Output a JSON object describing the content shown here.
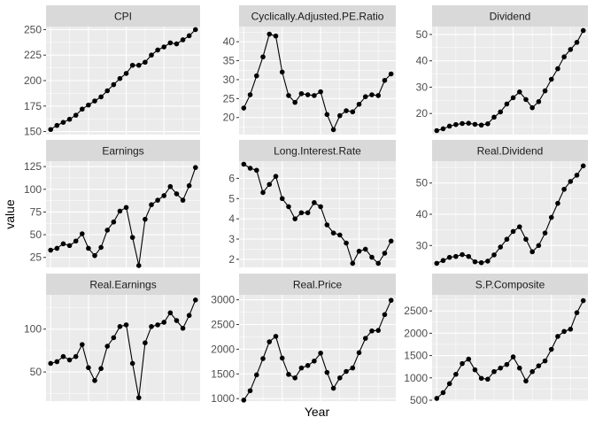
{
  "chart_data": {
    "type": "line",
    "facet_layout": "3x3 grid, free y scales",
    "xlabel": "Year",
    "ylabel": "value",
    "x_tick_labels": "none",
    "grid": true,
    "panels": [
      {
        "title": "CPI",
        "ylim": [
          147,
          253
        ],
        "ticks": [
          150,
          175,
          200,
          225,
          250
        ],
        "values": [
          152,
          156,
          159,
          162,
          166,
          172,
          176,
          180,
          184,
          190,
          196,
          202,
          207,
          215,
          215,
          218,
          225,
          230,
          233,
          237,
          236,
          240,
          244,
          250
        ]
      },
      {
        "title": "Cyclically.Adjusted.PE.Ratio",
        "ylim": [
          15.5,
          44
        ],
        "ticks": [
          20,
          25,
          30,
          35,
          40
        ],
        "values": [
          22.5,
          26,
          31,
          36,
          42,
          41.5,
          32,
          25.8,
          24,
          26.3,
          26,
          25.8,
          26.8,
          20.8,
          16.8,
          20.5,
          21.8,
          21.5,
          23.5,
          25.5,
          26,
          25.8,
          29.8,
          31.5
        ]
      },
      {
        "title": "Dividend",
        "ylim": [
          12,
          53
        ],
        "ticks": [
          20,
          30,
          40,
          50
        ],
        "values": [
          13.5,
          14.2,
          15.2,
          15.8,
          16.2,
          16.3,
          15.9,
          15.6,
          16.1,
          18.6,
          20.6,
          23.6,
          26,
          28.2,
          25.3,
          22.2,
          24.5,
          28.6,
          33,
          37,
          41.5,
          44.3,
          47,
          51.5
        ]
      },
      {
        "title": "Earnings",
        "ylim": [
          14,
          131
        ],
        "ticks": [
          25,
          50,
          75,
          100,
          125
        ],
        "values": [
          33,
          35,
          40,
          38,
          43,
          51,
          35,
          27,
          36,
          55,
          64,
          76,
          80,
          47,
          16,
          67,
          83,
          88,
          93,
          103,
          95,
          88,
          104,
          124
        ]
      },
      {
        "title": "Long.Interest.Rate",
        "ylim": [
          1.6,
          6.85
        ],
        "ticks": [
          2,
          3,
          4,
          5,
          6
        ],
        "values": [
          6.7,
          6.5,
          6.4,
          5.3,
          5.7,
          6.1,
          5,
          4.6,
          4,
          4.3,
          4.3,
          4.8,
          4.6,
          3.7,
          3.3,
          3.2,
          2.8,
          1.8,
          2.4,
          2.5,
          2.1,
          1.8,
          2.3,
          2.9
        ]
      },
      {
        "title": "Real.Dividend",
        "ylim": [
          23,
          57
        ],
        "ticks": [
          30,
          40,
          50
        ],
        "values": [
          24.3,
          25.2,
          26.2,
          26.5,
          27.1,
          26.5,
          24.8,
          24.5,
          25,
          27,
          29.5,
          32,
          34.5,
          36,
          32,
          28,
          30,
          34,
          39,
          43.5,
          48,
          50.5,
          52.5,
          55.5
        ]
      },
      {
        "title": "Real.Earnings",
        "ylim": [
          16,
          140
        ],
        "ticks": [
          50,
          100
        ],
        "values": [
          60,
          62,
          68,
          64,
          68,
          82,
          55,
          40,
          54,
          80,
          90,
          103,
          105,
          60,
          20,
          84,
          103,
          105,
          108,
          119,
          110,
          101,
          116,
          134
        ]
      },
      {
        "title": "Real.Price",
        "ylim": [
          950,
          3100
        ],
        "ticks": [
          1000,
          1500,
          2000,
          2500,
          3000
        ],
        "values": [
          970,
          1160,
          1480,
          1810,
          2150,
          2260,
          1820,
          1490,
          1420,
          1620,
          1670,
          1760,
          1920,
          1530,
          1210,
          1420,
          1550,
          1620,
          1930,
          2220,
          2370,
          2380,
          2700,
          2990
        ]
      },
      {
        "title": "S.P.Composite",
        "ylim": [
          480,
          2860
        ],
        "ticks": [
          500,
          1000,
          1500,
          2000,
          2500
        ],
        "values": [
          540,
          670,
          870,
          1080,
          1320,
          1420,
          1180,
          990,
          970,
          1140,
          1220,
          1300,
          1470,
          1220,
          930,
          1140,
          1270,
          1380,
          1640,
          1930,
          2040,
          2090,
          2460,
          2730
        ]
      }
    ]
  }
}
